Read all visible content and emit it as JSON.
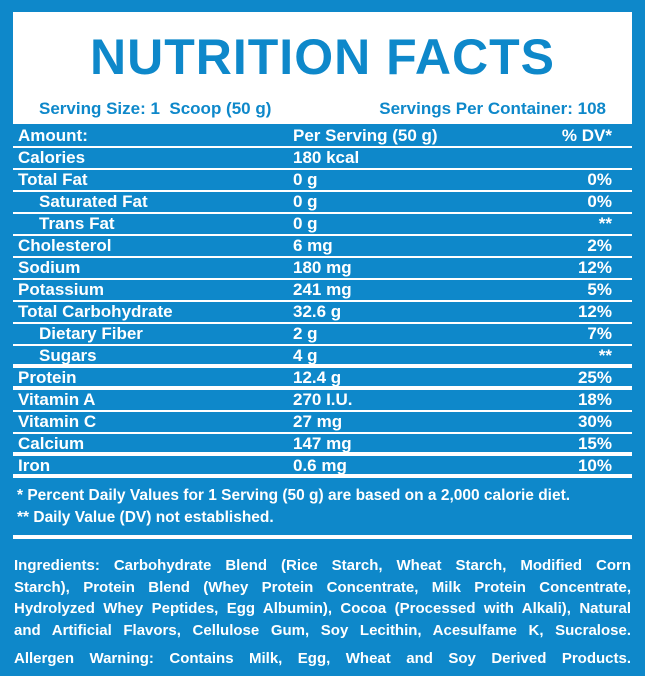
{
  "colors": {
    "brand_blue": "#0e88ca",
    "panel_bg": "#ffffff",
    "text_on_blue": "#ffffff"
  },
  "header": {
    "title": "NUTRITION FACTS",
    "serving_size": "Serving Size: 1  Scoop (50 g)",
    "servings_per_container": "Servings Per Container: 108"
  },
  "table": {
    "header": {
      "label": "Amount:",
      "amount": "Per Serving (50 g)",
      "dv": "% DV*"
    },
    "rows": [
      {
        "label": "Calories",
        "amount": "180 kcal",
        "dv": "",
        "indent": false,
        "thick": false
      },
      {
        "label": "Total Fat",
        "amount": "0 g",
        "dv": "0%",
        "indent": false,
        "thick": false
      },
      {
        "label": "Saturated Fat",
        "amount": "0 g",
        "dv": "0%",
        "indent": true,
        "thick": false
      },
      {
        "label": "Trans Fat",
        "amount": "0 g",
        "dv": "**",
        "indent": true,
        "thick": false
      },
      {
        "label": "Cholesterol",
        "amount": "6 mg",
        "dv": "2%",
        "indent": false,
        "thick": false
      },
      {
        "label": "Sodium",
        "amount": "180 mg",
        "dv": "12%",
        "indent": false,
        "thick": false
      },
      {
        "label": "Potassium",
        "amount": "241 mg",
        "dv": "5%",
        "indent": false,
        "thick": false
      },
      {
        "label": "Total Carbohydrate",
        "amount": "32.6 g",
        "dv": "12%",
        "indent": false,
        "thick": false
      },
      {
        "label": "Dietary Fiber",
        "amount": "2 g",
        "dv": "7%",
        "indent": true,
        "thick": false
      },
      {
        "label": "Sugars",
        "amount": "4 g",
        "dv": "**",
        "indent": true,
        "thick": true
      },
      {
        "label": "Protein",
        "amount": "12.4 g",
        "dv": "25%",
        "indent": false,
        "thick": true
      },
      {
        "label": "Vitamin A",
        "amount": "270 I.U.",
        "dv": "18%",
        "indent": false,
        "thick": false
      },
      {
        "label": "Vitamin C",
        "amount": "27 mg",
        "dv": "30%",
        "indent": false,
        "thick": false
      },
      {
        "label": "Calcium",
        "amount": "147 mg",
        "dv": "15%",
        "indent": false,
        "thick": true
      },
      {
        "label": "Iron",
        "amount": "0.6 mg",
        "dv": "10%",
        "indent": false,
        "thick": true
      }
    ]
  },
  "footnotes": [
    "* Percent Daily Values for 1 Serving (50 g) are based on a 2,000 calorie diet.",
    "** Daily Value (DV) not established."
  ],
  "ingredients_lines": [
    "Ingredients: Carbohydrate Blend (Rice Starch, Wheat Starch, Modified Corn",
    "Starch), Protein Blend (Whey Protein Concentrate, Milk Protein Concentrate,",
    "Hydrolyzed Whey Peptides, Egg Albumin), Cocoa (Processed with Alkali), Natural",
    "and Artificial Flavors, Cellulose Gum, Soy Lecithin, Acesulfame K, Sucralose."
  ],
  "allergen_warning": "Allergen Warning: Contains Milk, Egg, Wheat and Soy Derived Products."
}
